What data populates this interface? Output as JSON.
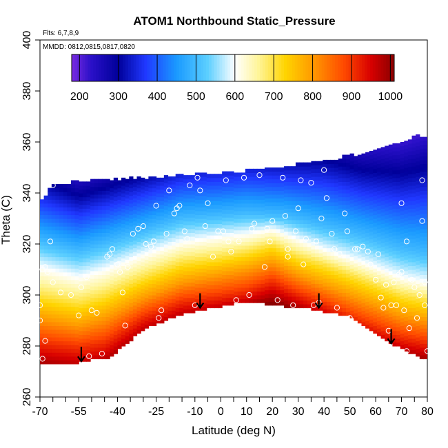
{
  "chart_data": {
    "type": "heatmap",
    "title": "ATOM1 Northbound Static_Pressure",
    "annotations": [
      "Flts: 6,7,8,9",
      "MMDD: 0812,0815,0817,0820"
    ],
    "xlabel": "Latitude (deg N)",
    "ylabel": "Theta (C)",
    "xlim": [
      -70,
      80
    ],
    "ylim": [
      260,
      400
    ],
    "x_tick_labels": [
      -70,
      -55,
      -40,
      -25,
      -10,
      0,
      10,
      20,
      30,
      40,
      50,
      60,
      70,
      80
    ],
    "y_tick_labels": [
      260,
      280,
      300,
      320,
      340,
      360,
      380,
      400
    ],
    "colorbar": {
      "range": [
        180,
        1010
      ],
      "tick_labels": [
        200,
        300,
        400,
        500,
        600,
        700,
        800,
        900,
        1000
      ],
      "stops": [
        {
          "v": 180,
          "color": "#7a2be0"
        },
        {
          "v": 230,
          "color": "#2a10c8"
        },
        {
          "v": 300,
          "color": "#00009a"
        },
        {
          "v": 370,
          "color": "#2038ff"
        },
        {
          "v": 450,
          "color": "#1a9aff"
        },
        {
          "v": 530,
          "color": "#5ccfff"
        },
        {
          "v": 600,
          "color": "#ffffff"
        },
        {
          "v": 660,
          "color": "#fff59a"
        },
        {
          "v": 730,
          "color": "#ffd400"
        },
        {
          "v": 800,
          "color": "#ff9a00"
        },
        {
          "v": 880,
          "color": "#ff4a00"
        },
        {
          "v": 950,
          "color": "#d80000"
        },
        {
          "v": 1010,
          "color": "#8a0000"
        }
      ]
    },
    "field_boundary": {
      "top": [
        [
          -65,
          343
        ],
        [
          -50,
          344
        ],
        [
          -35,
          345
        ],
        [
          -20,
          346
        ],
        [
          -5,
          347
        ],
        [
          10,
          348
        ],
        [
          25,
          350
        ],
        [
          40,
          352
        ],
        [
          55,
          355
        ],
        [
          70,
          359
        ],
        [
          76,
          362
        ]
      ],
      "bottom": [
        [
          -70,
          274
        ],
        [
          -60,
          273
        ],
        [
          -50,
          275
        ],
        [
          -43,
          276
        ],
        [
          -30,
          287
        ],
        [
          -15,
          293
        ],
        [
          0,
          296
        ],
        [
          10,
          298
        ],
        [
          25,
          296
        ],
        [
          35,
          295
        ],
        [
          50,
          292
        ],
        [
          65,
          282
        ],
        [
          75,
          277
        ],
        [
          80,
          275
        ]
      ]
    },
    "pressure_surfaces": [
      {
        "value": 400,
        "theta": [
          [
            -70,
            333
          ],
          [
            -55,
            328
          ],
          [
            -45,
            331
          ],
          [
            -30,
            336
          ],
          [
            -15,
            341
          ],
          [
            0,
            342
          ],
          [
            10,
            343
          ],
          [
            25,
            342
          ],
          [
            40,
            340
          ],
          [
            55,
            336
          ],
          [
            70,
            333
          ],
          [
            80,
            333
          ]
        ]
      },
      {
        "value": 500,
        "theta": [
          [
            -70,
            321
          ],
          [
            -55,
            317
          ],
          [
            -45,
            320
          ],
          [
            -30,
            325
          ],
          [
            -15,
            330
          ],
          [
            0,
            331
          ],
          [
            10,
            332
          ],
          [
            25,
            331
          ],
          [
            40,
            327
          ],
          [
            55,
            323
          ],
          [
            70,
            318
          ],
          [
            80,
            316
          ]
        ]
      },
      {
        "value": 600,
        "theta": [
          [
            -70,
            311
          ],
          [
            -55,
            307
          ],
          [
            -45,
            310
          ],
          [
            -30,
            316
          ],
          [
            -15,
            321
          ],
          [
            0,
            323
          ],
          [
            10,
            324
          ],
          [
            20,
            326
          ],
          [
            30,
            322
          ],
          [
            40,
            318
          ],
          [
            55,
            313
          ],
          [
            70,
            307
          ],
          [
            80,
            305
          ]
        ]
      },
      {
        "value": 700,
        "theta": [
          [
            -70,
            300
          ],
          [
            -55,
            297
          ],
          [
            -45,
            300
          ],
          [
            -30,
            307
          ],
          [
            -15,
            313
          ],
          [
            0,
            315
          ],
          [
            10,
            317
          ],
          [
            20,
            320
          ],
          [
            30,
            315
          ],
          [
            40,
            312
          ],
          [
            55,
            306
          ],
          [
            70,
            300
          ],
          [
            80,
            298
          ]
        ]
      },
      {
        "value": 800,
        "theta": [
          [
            -70,
            291
          ],
          [
            -55,
            288
          ],
          [
            -45,
            291
          ],
          [
            -30,
            299
          ],
          [
            -15,
            305
          ],
          [
            0,
            308
          ],
          [
            10,
            310
          ],
          [
            20,
            313
          ],
          [
            30,
            308
          ],
          [
            40,
            304
          ],
          [
            55,
            298
          ],
          [
            70,
            292
          ],
          [
            80,
            290
          ]
        ]
      },
      {
        "value": 900,
        "theta": [
          [
            -70,
            282
          ],
          [
            -55,
            280
          ],
          [
            -45,
            282
          ],
          [
            -30,
            292
          ],
          [
            -15,
            298
          ],
          [
            0,
            300
          ],
          [
            10,
            302
          ],
          [
            20,
            306
          ],
          [
            30,
            301
          ],
          [
            40,
            297
          ],
          [
            55,
            290
          ],
          [
            70,
            284
          ],
          [
            80,
            282
          ]
        ]
      },
      {
        "value": 1000,
        "theta": [
          [
            -70,
            272
          ],
          [
            -55,
            270
          ],
          [
            -45,
            272
          ],
          [
            -30,
            284
          ],
          [
            -15,
            290
          ],
          [
            0,
            293
          ],
          [
            10,
            295
          ],
          [
            20,
            298
          ],
          [
            30,
            294
          ],
          [
            40,
            290
          ],
          [
            55,
            283
          ],
          [
            70,
            276
          ],
          [
            80,
            274
          ]
        ]
      }
    ],
    "observation_points": [
      [
        -65,
        343
      ],
      [
        -66,
        321
      ],
      [
        -68,
        311
      ],
      [
        -69,
        310
      ],
      [
        -67,
        309
      ],
      [
        -65,
        305
      ],
      [
        -70,
        296
      ],
      [
        -70,
        290
      ],
      [
        -68,
        282
      ],
      [
        -69,
        275
      ],
      [
        -62,
        301
      ],
      [
        -58,
        300
      ],
      [
        -55,
        292
      ],
      [
        -54,
        303
      ],
      [
        -52,
        307
      ],
      [
        -51,
        276
      ],
      [
        -50,
        294
      ],
      [
        -48,
        293
      ],
      [
        -46,
        277
      ],
      [
        -44,
        315
      ],
      [
        -43,
        316
      ],
      [
        -42,
        318
      ],
      [
        -40,
        312
      ],
      [
        -39,
        309
      ],
      [
        -38,
        301
      ],
      [
        -37,
        288
      ],
      [
        -36,
        311
      ],
      [
        -34,
        324
      ],
      [
        -32,
        326
      ],
      [
        -30,
        327
      ],
      [
        -29,
        320
      ],
      [
        -27,
        319
      ],
      [
        -26,
        321
      ],
      [
        -25,
        335
      ],
      [
        -24,
        291
      ],
      [
        -23,
        294
      ],
      [
        -21,
        324
      ],
      [
        -20,
        341
      ],
      [
        -18,
        332
      ],
      [
        -17,
        334
      ],
      [
        -16,
        335
      ],
      [
        -14,
        325
      ],
      [
        -13,
        322
      ],
      [
        -12,
        343
      ],
      [
        -10,
        296
      ],
      [
        -9,
        346
      ],
      [
        -8,
        341
      ],
      [
        -6,
        327
      ],
      [
        -5,
        336
      ],
      [
        -3,
        315
      ],
      [
        -1,
        325
      ],
      [
        1,
        325
      ],
      [
        2,
        345
      ],
      [
        3,
        321
      ],
      [
        4,
        317
      ],
      [
        6,
        298
      ],
      [
        7,
        321
      ],
      [
        9,
        346
      ],
      [
        11,
        300
      ],
      [
        12,
        326
      ],
      [
        13,
        328
      ],
      [
        15,
        347
      ],
      [
        17,
        311
      ],
      [
        18,
        326
      ],
      [
        19,
        321
      ],
      [
        20,
        329
      ],
      [
        22,
        298
      ],
      [
        24,
        346
      ],
      [
        25,
        331
      ],
      [
        26,
        318
      ],
      [
        26,
        315
      ],
      [
        28,
        296
      ],
      [
        29,
        325
      ],
      [
        30,
        334
      ],
      [
        31,
        345
      ],
      [
        32,
        312
      ],
      [
        33,
        322
      ],
      [
        35,
        344
      ],
      [
        36,
        296
      ],
      [
        37,
        321
      ],
      [
        38,
        297
      ],
      [
        39,
        330
      ],
      [
        40,
        349
      ],
      [
        41,
        338
      ],
      [
        43,
        324
      ],
      [
        44,
        318
      ],
      [
        45,
        295
      ],
      [
        46,
        316
      ],
      [
        48,
        332
      ],
      [
        49,
        325
      ],
      [
        50,
        291
      ],
      [
        52,
        318
      ],
      [
        53,
        318
      ],
      [
        55,
        319
      ],
      [
        57,
        317
      ],
      [
        58,
        312
      ],
      [
        60,
        306
      ],
      [
        61,
        316
      ],
      [
        62,
        299
      ],
      [
        63,
        295
      ],
      [
        64,
        304
      ],
      [
        65,
        286
      ],
      [
        66,
        296
      ],
      [
        67,
        305
      ],
      [
        68,
        296
      ],
      [
        69,
        308
      ],
      [
        70,
        336
      ],
      [
        70,
        309
      ],
      [
        71,
        294
      ],
      [
        72,
        321
      ],
      [
        72,
        278
      ],
      [
        73,
        287
      ],
      [
        74,
        306
      ],
      [
        75,
        303
      ],
      [
        76,
        291
      ],
      [
        77,
        300
      ],
      [
        78,
        329
      ],
      [
        78,
        345
      ],
      [
        79,
        305
      ],
      [
        79,
        296
      ],
      [
        80,
        278
      ]
    ],
    "arrows": [
      [
        -54,
        278
      ],
      [
        -8,
        299
      ],
      [
        38,
        299
      ],
      [
        66,
        285
      ]
    ]
  }
}
